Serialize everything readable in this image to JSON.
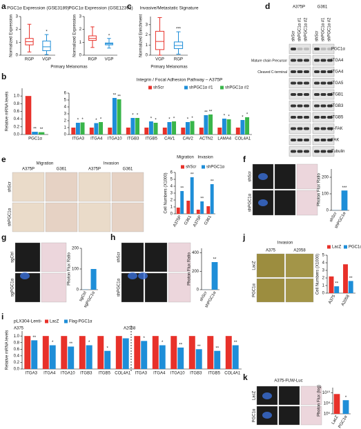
{
  "figure": {
    "panel_labels": [
      "a",
      "b",
      "c",
      "d",
      "e",
      "f",
      "g",
      "h",
      "i",
      "j",
      "k"
    ],
    "blot": {
      "cell_lines": [
        "A375P",
        "G361"
      ],
      "lanes": [
        "shScr",
        "shPGC1α #1",
        "shPGC1α #2"
      ],
      "rows": [
        "PGC1α",
        "ITGA4",
        "ITGA4",
        "ITGA5",
        "ITGB1",
        "ITGB3",
        "ITGB5",
        "p-FAK",
        "FAK",
        "Tubulin"
      ],
      "row_notes": [
        "Mature chain Precursor",
        "Cleaved C-terminal"
      ]
    },
    "e_images": {
      "groups": [
        "Migration",
        "Invasion"
      ],
      "columns": [
        "A375P",
        "G361",
        "A375P",
        "G361"
      ],
      "rows": [
        "shScr",
        "shPGC1α"
      ]
    },
    "f_images": {
      "rows": [
        "shScr",
        "shPGC1α"
      ]
    },
    "g_images": {
      "rows": [
        "sgCtrl",
        "sgPGC1α"
      ]
    },
    "h_images": {
      "rows": [
        "shScr",
        "shPGC1α"
      ]
    },
    "j_images": {
      "title": "Invasion",
      "columns": [
        "A375",
        "A2058"
      ],
      "rows": [
        "LacZ",
        "PGC1α"
      ]
    },
    "k_images": {
      "title": "A375-FUW-Luc",
      "rows": [
        "LacZ",
        "PGC1α"
      ]
    }
  },
  "chart_data": [
    {
      "type": "box",
      "title": "PGC1α Expression (GSE3189)",
      "ylabel": "Normalized Expression",
      "xlabel": "Primary Melanomas",
      "categories": [
        "RGP",
        "VGP"
      ],
      "colors": [
        "#e8312a",
        "#1e8ed8"
      ],
      "stats": [
        {
          "min": 0.25,
          "q1": 0.8,
          "median": 1.05,
          "q3": 1.3,
          "max": 2.4
        },
        {
          "min": 0.05,
          "q1": 0.35,
          "median": 0.65,
          "q3": 1.1,
          "max": 1.6
        }
      ],
      "annotations": [
        null,
        "*"
      ],
      "ylim": [
        0,
        3
      ],
      "yticks": [
        0,
        1,
        2,
        3
      ]
    },
    {
      "type": "box",
      "title": "PGC1α Expression (GSE12391)",
      "ylabel": "Normalized Expression",
      "categories": [
        "RGP",
        "VGP"
      ],
      "colors": [
        "#e8312a",
        "#1e8ed8"
      ],
      "stats": [
        {
          "min": 0.6,
          "q1": 1.15,
          "median": 1.3,
          "q3": 1.5,
          "max": 2.2
        },
        {
          "min": 0.55,
          "q1": 0.8,
          "median": 0.88,
          "q3": 0.95,
          "max": 1.3
        }
      ],
      "annotations": [
        null,
        "*"
      ],
      "ylim": [
        0,
        3
      ],
      "yticks": [
        0,
        1,
        2,
        3
      ]
    },
    {
      "type": "box",
      "title": "Invasive/Metastatic Signature",
      "ylabel": "Normalized Enrichment",
      "xlabel": "Primary Melanomas",
      "categories": [
        "VGP",
        "RGP"
      ],
      "colors": [
        "#e8312a",
        "#1e8ed8"
      ],
      "stats": [
        {
          "min": 0,
          "q1": 0.55,
          "median": 1.35,
          "q3": 2.35,
          "max": 3.7
        },
        {
          "min": 0.1,
          "q1": 0.65,
          "median": 0.95,
          "q3": 1.3,
          "max": 2.3
        }
      ],
      "annotations": [
        null,
        "***"
      ],
      "ylim": [
        0,
        3.8
      ],
      "yticks": [
        0,
        1,
        2,
        3
      ]
    },
    {
      "type": "bar",
      "ylabel": "Relative mRNA levels",
      "categories": [
        "PGC1α"
      ],
      "series": [
        {
          "color": "#e8312a",
          "values": [
            1.0
          ],
          "annotations": [
            null
          ]
        },
        {
          "color": "#1e8ed8",
          "values": [
            0.07
          ],
          "annotations": [
            "**"
          ]
        },
        {
          "color": "#39b54a",
          "values": [
            0.06
          ],
          "annotations": [
            "**"
          ]
        }
      ],
      "ylim": [
        0,
        1.2
      ],
      "yticks": [
        {
          "value": 0,
          "label": "0.0"
        },
        {
          "value": 0.2,
          "label": "0.2"
        },
        {
          "value": 0.4,
          "label": "0.4"
        },
        {
          "value": 0.6,
          "label": "0.6"
        },
        {
          "value": 0.8,
          "label": "0.8"
        },
        {
          "value": 1,
          "label": "1.0"
        }
      ]
    },
    {
      "type": "bar",
      "title": "Integrin / Focal Adhesion Pathway – A375P",
      "categories": [
        "ITGA3",
        "ITGA4",
        "ITGA10",
        "ITGB3",
        "ITGB5",
        "CAV1",
        "CAV2",
        "ACTN2",
        "LAMA4",
        "COL4A1"
      ],
      "series": [
        {
          "name": "shScr",
          "color": "#e8312a",
          "values": [
            1,
            1,
            1,
            1,
            1,
            1,
            1,
            1,
            1,
            1
          ],
          "annotations": [
            null,
            null,
            null,
            null,
            null,
            null,
            null,
            null,
            null,
            null
          ]
        },
        {
          "name": "shPGC1α #1",
          "color": "#1e8ed8",
          "values": [
            1.7,
            1.65,
            5.3,
            2.4,
            1.9,
            1.8,
            1.8,
            2.8,
            2.3,
            2.1
          ],
          "annotations": [
            "*",
            "*",
            "**",
            "*",
            "*",
            "*",
            "*",
            "**",
            "*",
            "*"
          ]
        },
        {
          "name": "shPGC1α #2",
          "color": "#39b54a",
          "values": [
            1.75,
            1.8,
            5.1,
            2.4,
            1.7,
            1.9,
            1.95,
            2.9,
            2.2,
            2.5
          ],
          "annotations": [
            "*",
            "*",
            "**",
            "*",
            "*",
            "*",
            "*",
            "**",
            "*",
            "*"
          ]
        }
      ],
      "ylim": [
        0,
        6
      ],
      "yticks": [
        0,
        1,
        2,
        3,
        4,
        5,
        6
      ]
    },
    {
      "type": "bar",
      "ylabel": "Cell Numbers (X1000)",
      "categories": [
        "A375P",
        "G361",
        "A375P",
        "G361"
      ],
      "groups": [
        "Migration",
        "Invasion"
      ],
      "series": [
        {
          "name": "shScr",
          "color": "#e8312a",
          "values": [
            0.9,
            1.9,
            0.6,
            1.1
          ],
          "annotations": [
            null,
            null,
            null,
            null
          ]
        },
        {
          "name": "shPGC1α",
          "color": "#1e8ed8",
          "values": [
            3.3,
            5.3,
            1.8,
            4.3
          ],
          "annotations": [
            "**",
            "**",
            "**",
            "**"
          ]
        }
      ],
      "ylim": [
        0,
        6
      ],
      "yticks": [
        0,
        1,
        2,
        3,
        4,
        5,
        6
      ]
    },
    {
      "type": "bar",
      "ylabel": "Photon Flux Ratio",
      "categories": [
        "shScr",
        "shPGC1α"
      ],
      "series": [
        {
          "color": "#1e8ed8",
          "values": [
            1,
            120
          ],
          "annotations": [
            null,
            "***"
          ]
        }
      ],
      "ylim": [
        0,
        250
      ],
      "yticks": [
        0,
        100,
        200
      ]
    },
    {
      "type": "bar",
      "ylabel": "Photon Flux Ratio",
      "categories": [
        "sgCtrl",
        "sgPGC1α"
      ],
      "series": [
        {
          "color": "#1e8ed8",
          "values": [
            1,
            100
          ],
          "annotations": [
            null,
            null
          ]
        }
      ],
      "ylim": [
        0,
        200
      ],
      "yticks": [
        0,
        100,
        200
      ]
    },
    {
      "type": "bar",
      "ylabel": "Photon Flux Ratio",
      "categories": [
        "shScr",
        "shPGC1α"
      ],
      "series": [
        {
          "color": "#1e8ed8",
          "values": [
            1,
            300
          ],
          "annotations": [
            null,
            "**"
          ]
        }
      ],
      "ylim": [
        0,
        450
      ],
      "yticks": [
        0,
        200,
        400
      ]
    },
    {
      "type": "bar",
      "ylabel": "Cell Numbers (X1000)",
      "categories": [
        "A375",
        "A2058"
      ],
      "series": [
        {
          "name": "LacZ",
          "color": "#e8312a",
          "values": [
            2.2,
            3.8
          ],
          "annotations": [
            null,
            null
          ]
        },
        {
          "name": "PGC1α",
          "color": "#1e8ed8",
          "values": [
            0.9,
            1.6
          ],
          "annotations": [
            "**",
            "**"
          ]
        }
      ],
      "ylim": [
        0,
        5
      ],
      "yticks": [
        0,
        1,
        2,
        3,
        4,
        5
      ]
    },
    {
      "type": "bar",
      "title": "pLX304-Lenti-",
      "ylabel": "Relative mRNA levels",
      "categories": [
        "ITGA3",
        "ITGA4",
        "ITGA10",
        "ITGB3",
        "ITGB5",
        "COL4A1",
        "ITGA3",
        "ITGA4",
        "ITGA10",
        "ITGB3",
        "ITGB5",
        "COL4A1"
      ],
      "groups": [
        "A375",
        "A2058"
      ],
      "series": [
        {
          "name": "LacZ",
          "color": "#e8312a",
          "values": [
            1,
            1,
            1,
            1,
            1,
            1,
            1,
            1,
            1,
            1,
            1,
            1
          ],
          "annotations": [
            null,
            null,
            null,
            null,
            null,
            null,
            null,
            null,
            null,
            null,
            null,
            null
          ]
        },
        {
          "name": "Flag-PGC1α",
          "color": "#1e8ed8",
          "values": [
            0.87,
            0.72,
            0.68,
            0.72,
            0.55,
            0.93,
            0.85,
            0.72,
            0.65,
            0.6,
            0.55,
            0.72
          ],
          "annotations": [
            "**",
            "*",
            "**",
            "*",
            "*",
            null,
            "*",
            "*",
            "**",
            "**",
            "**",
            "**"
          ]
        }
      ],
      "ylim": [
        0,
        1.15
      ],
      "yticks": [
        {
          "value": 0,
          "label": "0.0"
        },
        {
          "value": 0.2,
          "label": "0.2"
        },
        {
          "value": 0.4,
          "label": "0.4"
        },
        {
          "value": 0.6,
          "label": "0.6"
        },
        {
          "value": 0.8,
          "label": "0.8"
        },
        {
          "value": 1,
          "label": "1.0"
        }
      ]
    },
    {
      "type": "bar",
      "ylabel": "Photon Flux (log)",
      "log": true,
      "categories": [
        "LacZ",
        "PGC1α"
      ],
      "series": [
        {
          "colors": [
            "#e8312a",
            "#1e8ed8"
          ],
          "values": [
            6000000000,
            400000000
          ],
          "annotations": [
            null,
            "*"
          ]
        }
      ],
      "ylim": [
        1000000,
        100000000000
      ],
      "yticks": [
        {
          "value": 1000000,
          "label": "10⁶"
        },
        {
          "value": 100000000,
          "label": "10⁸"
        },
        {
          "value": 10000000000,
          "label": "10¹⁰"
        }
      ]
    }
  ]
}
